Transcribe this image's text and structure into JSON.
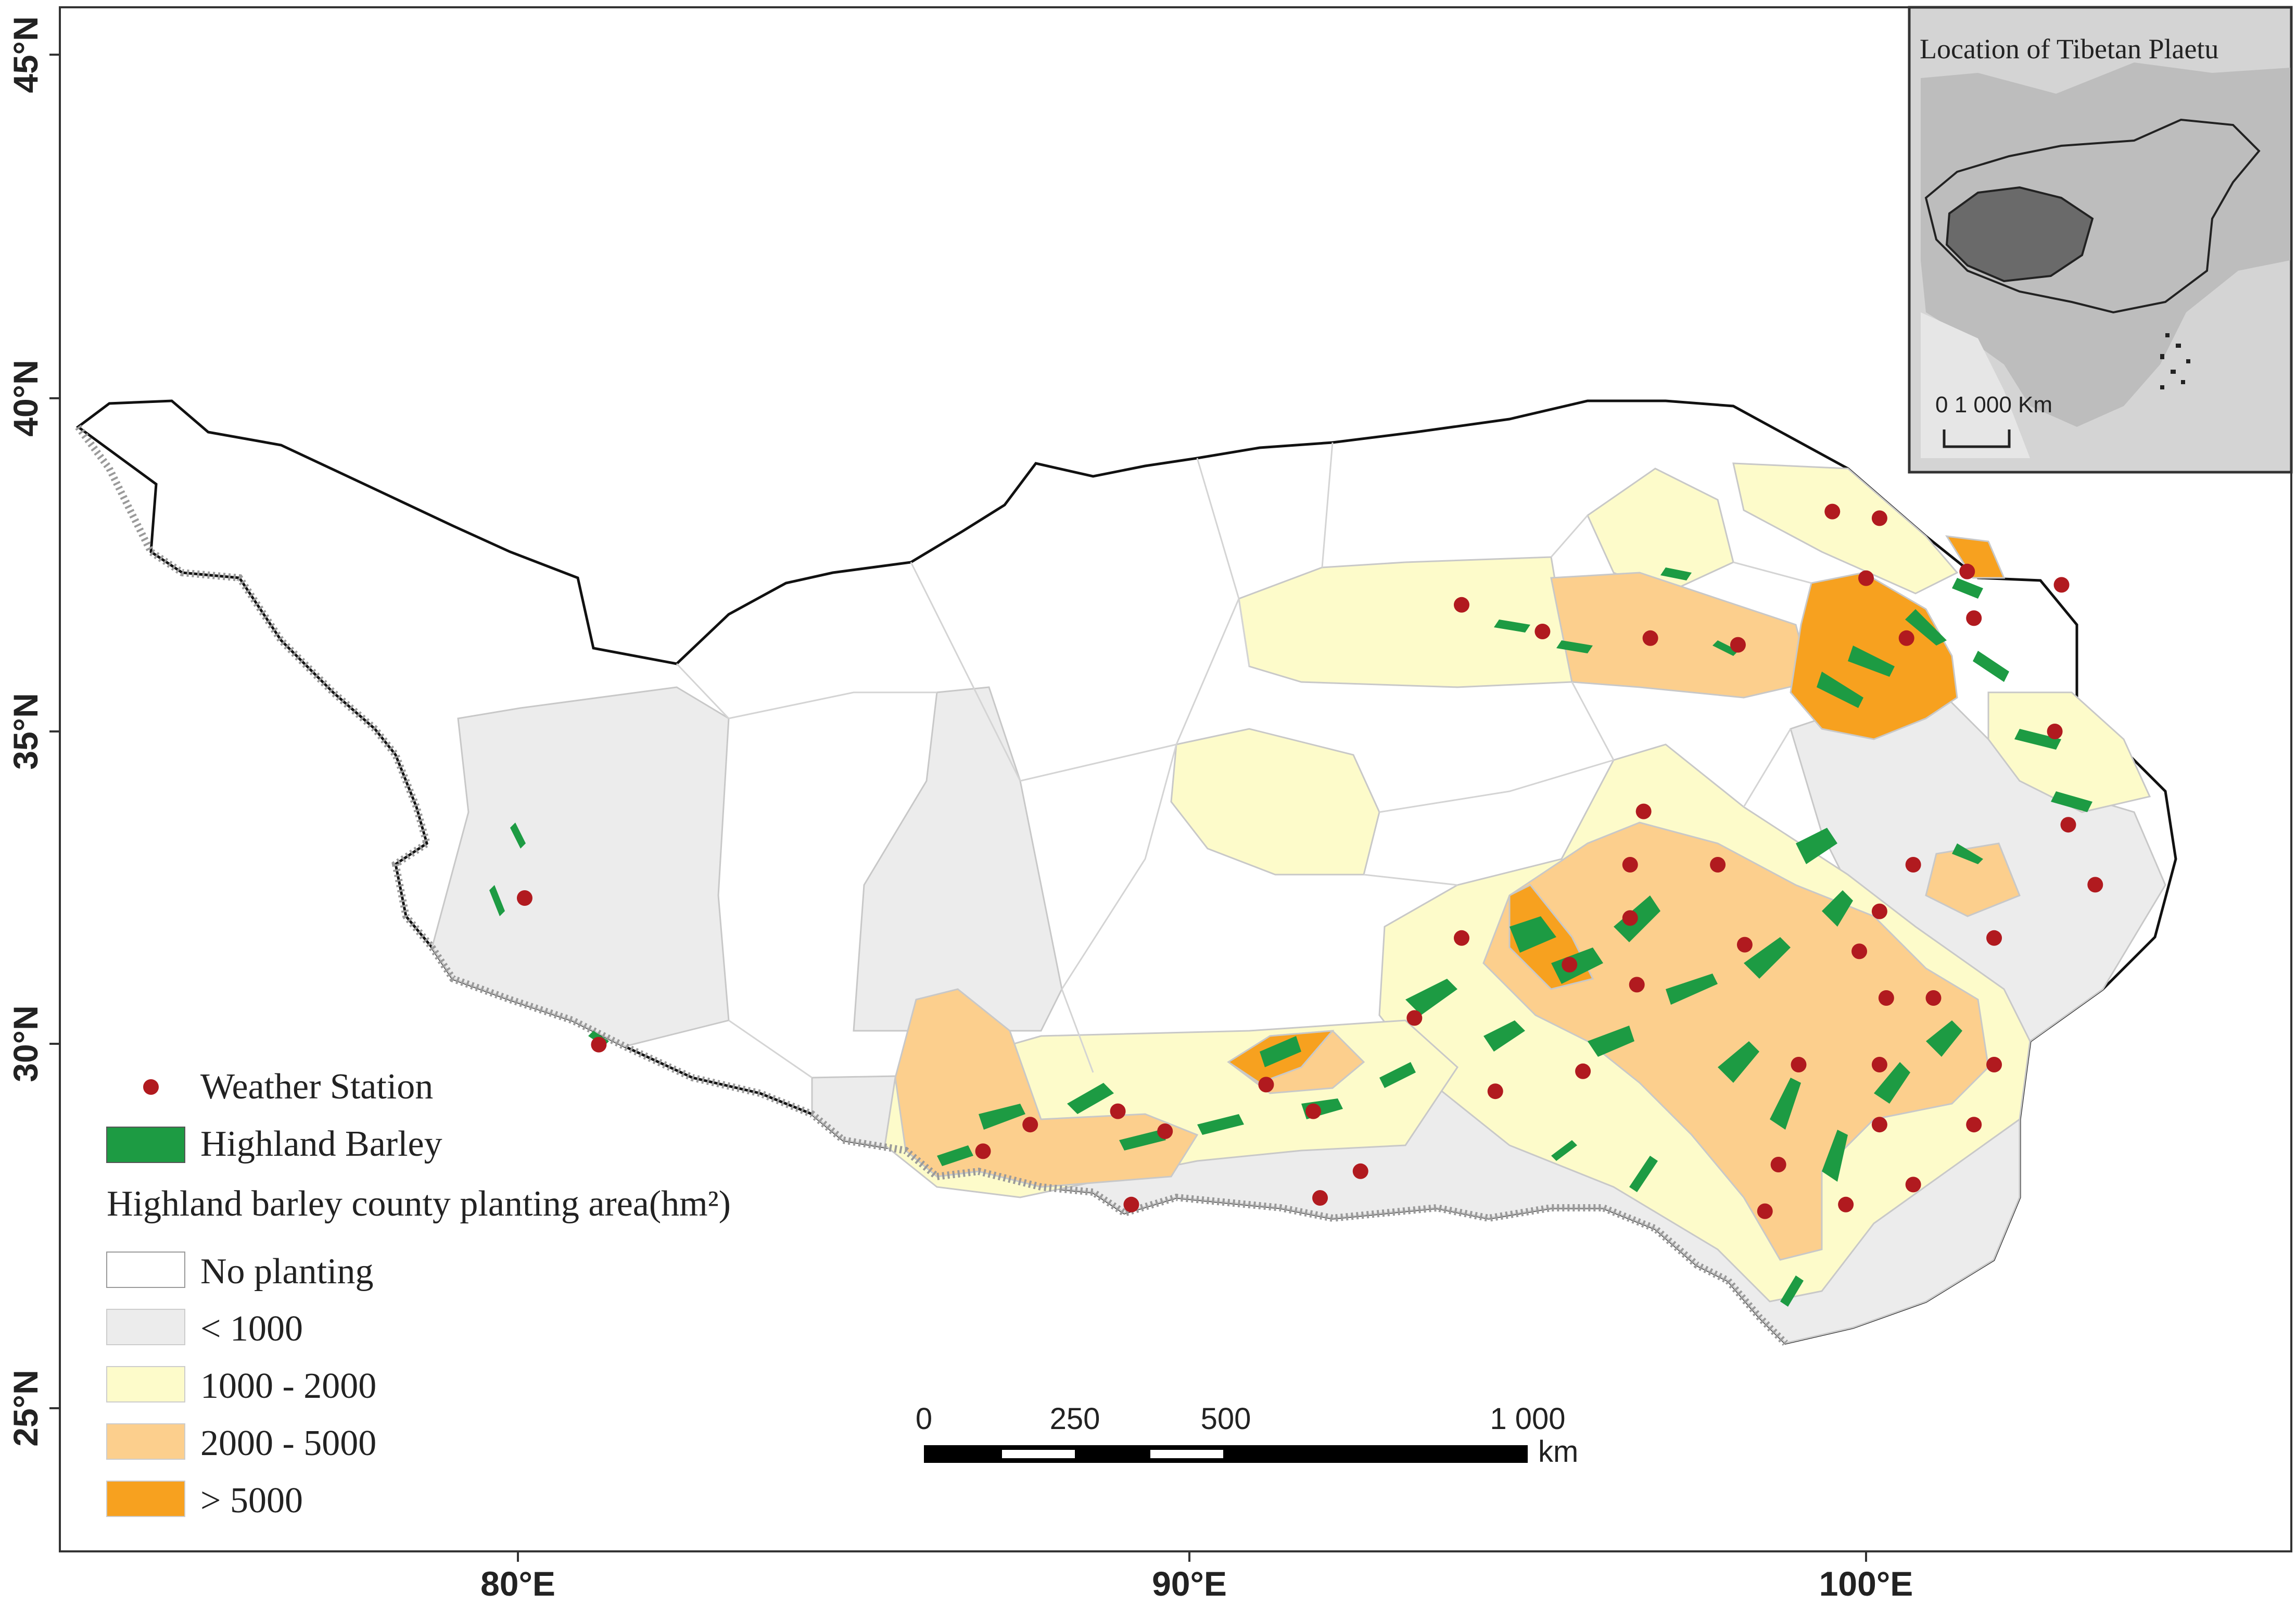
{
  "axes": {
    "x_ticks": [
      "80°E",
      "90°E",
      "100°E"
    ],
    "y_ticks": [
      "45°N",
      "40°N",
      "35°N",
      "30°N",
      "25°N"
    ]
  },
  "legend": {
    "station_label": "Weather Station",
    "barley_label": "Highland Barley",
    "area_title": "Highland barley county planting area(hm²)",
    "classes": [
      {
        "label": "No planting",
        "color": "#ffffff"
      },
      {
        "label": "< 1000",
        "color": "#ececec"
      },
      {
        "label": "1000 - 2000",
        "color": "#fdfbca"
      },
      {
        "label": "2000 - 5000",
        "color": "#fccf8d"
      },
      {
        "label": "> 5000",
        "color": "#f7a11f"
      }
    ],
    "barley_color": "#1d9b43",
    "station_color": "#b11a1f"
  },
  "scalebar": {
    "ticks": [
      "0",
      "250",
      "500",
      "1 000"
    ],
    "unit": "km"
  },
  "inset": {
    "title": "Location of Tibetan Plaetu",
    "scale_text": "0 1 000 Km"
  },
  "stations": [
    {
      "lon": 80.1,
      "lat": 32.5
    },
    {
      "lon": 81.2,
      "lat": 30.3
    },
    {
      "lon": 94.0,
      "lat": 36.9
    },
    {
      "lon": 95.2,
      "lat": 36.5
    },
    {
      "lon": 96.8,
      "lat": 36.4
    },
    {
      "lon": 98.1,
      "lat": 36.3
    },
    {
      "lon": 99.5,
      "lat": 38.3
    },
    {
      "lon": 100.2,
      "lat": 38.2
    },
    {
      "lon": 100.0,
      "lat": 37.3
    },
    {
      "lon": 101.5,
      "lat": 37.4
    },
    {
      "lon": 102.9,
      "lat": 37.2
    },
    {
      "lon": 101.6,
      "lat": 36.7
    },
    {
      "lon": 100.6,
      "lat": 36.4
    },
    {
      "lon": 102.8,
      "lat": 35.0
    },
    {
      "lon": 103.0,
      "lat": 33.6
    },
    {
      "lon": 103.4,
      "lat": 32.7
    },
    {
      "lon": 96.7,
      "lat": 33.8
    },
    {
      "lon": 96.5,
      "lat": 33.0
    },
    {
      "lon": 97.8,
      "lat": 33.0
    },
    {
      "lon": 100.7,
      "lat": 33.0
    },
    {
      "lon": 100.2,
      "lat": 32.3
    },
    {
      "lon": 101.9,
      "lat": 31.9
    },
    {
      "lon": 96.5,
      "lat": 32.2
    },
    {
      "lon": 94.0,
      "lat": 31.9
    },
    {
      "lon": 95.6,
      "lat": 31.5
    },
    {
      "lon": 96.6,
      "lat": 31.2
    },
    {
      "lon": 98.2,
      "lat": 31.8
    },
    {
      "lon": 99.9,
      "lat": 31.7
    },
    {
      "lon": 100.3,
      "lat": 31.0
    },
    {
      "lon": 101.0,
      "lat": 31.0
    },
    {
      "lon": 93.3,
      "lat": 30.7
    },
    {
      "lon": 95.8,
      "lat": 29.9
    },
    {
      "lon": 99.0,
      "lat": 30.0
    },
    {
      "lon": 100.2,
      "lat": 30.0
    },
    {
      "lon": 101.9,
      "lat": 30.0
    },
    {
      "lon": 91.1,
      "lat": 29.7
    },
    {
      "lon": 91.8,
      "lat": 29.3
    },
    {
      "lon": 94.5,
      "lat": 29.6
    },
    {
      "lon": 88.9,
      "lat": 29.3
    },
    {
      "lon": 89.6,
      "lat": 29.0
    },
    {
      "lon": 87.6,
      "lat": 29.1
    },
    {
      "lon": 86.9,
      "lat": 28.7
    },
    {
      "lon": 92.5,
      "lat": 28.4
    },
    {
      "lon": 91.9,
      "lat": 28.0
    },
    {
      "lon": 89.1,
      "lat": 27.9
    },
    {
      "lon": 98.7,
      "lat": 28.5
    },
    {
      "lon": 98.5,
      "lat": 27.8
    },
    {
      "lon": 99.7,
      "lat": 27.9
    },
    {
      "lon": 100.2,
      "lat": 29.1
    },
    {
      "lon": 101.6,
      "lat": 29.1
    },
    {
      "lon": 100.7,
      "lat": 28.2
    }
  ]
}
